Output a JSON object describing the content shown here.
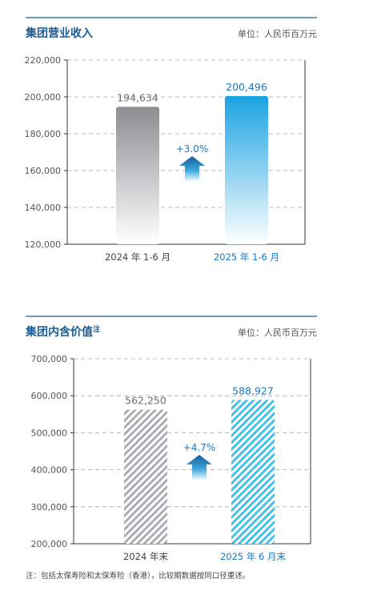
{
  "colors": {
    "accent": "#1a5c96",
    "blue": "#1a78c2",
    "gray": "#939598"
  },
  "chart_data": [
    {
      "type": "bar",
      "title": "集团营业收入",
      "unit": "单位：人民币百万元",
      "categories": [
        "2024 年 1-6 月",
        "2025 年 1-6 月"
      ],
      "values": [
        194634,
        200496
      ],
      "value_labels": [
        "194,634",
        "200,496"
      ],
      "change": "+3.0%",
      "ylim": [
        120000,
        220000
      ],
      "yticks": [
        "120,000",
        "140,000",
        "160,000",
        "180,000",
        "200,000",
        "220,000"
      ],
      "ytick_values": [
        120000,
        140000,
        160000,
        180000,
        200000,
        220000
      ],
      "grid": true
    },
    {
      "type": "bar",
      "title": "集团内含价值",
      "title_sup": "注",
      "unit": "单位：人民币百万元",
      "categories": [
        "2024 年末",
        "2025 年 6 月末"
      ],
      "values": [
        562250,
        588927
      ],
      "value_labels": [
        "562,250",
        "588,927"
      ],
      "change": "+4.7%",
      "ylim": [
        200000,
        700000
      ],
      "yticks": [
        "200,000",
        "300,000",
        "400,000",
        "500,000",
        "600,000",
        "700,000"
      ],
      "ytick_values": [
        200000,
        300000,
        400000,
        500000,
        600000,
        700000
      ],
      "grid": true
    }
  ],
  "footnote": "注：包括太保寿险和太保寿险（香港），比较期数据按同口径重述。"
}
